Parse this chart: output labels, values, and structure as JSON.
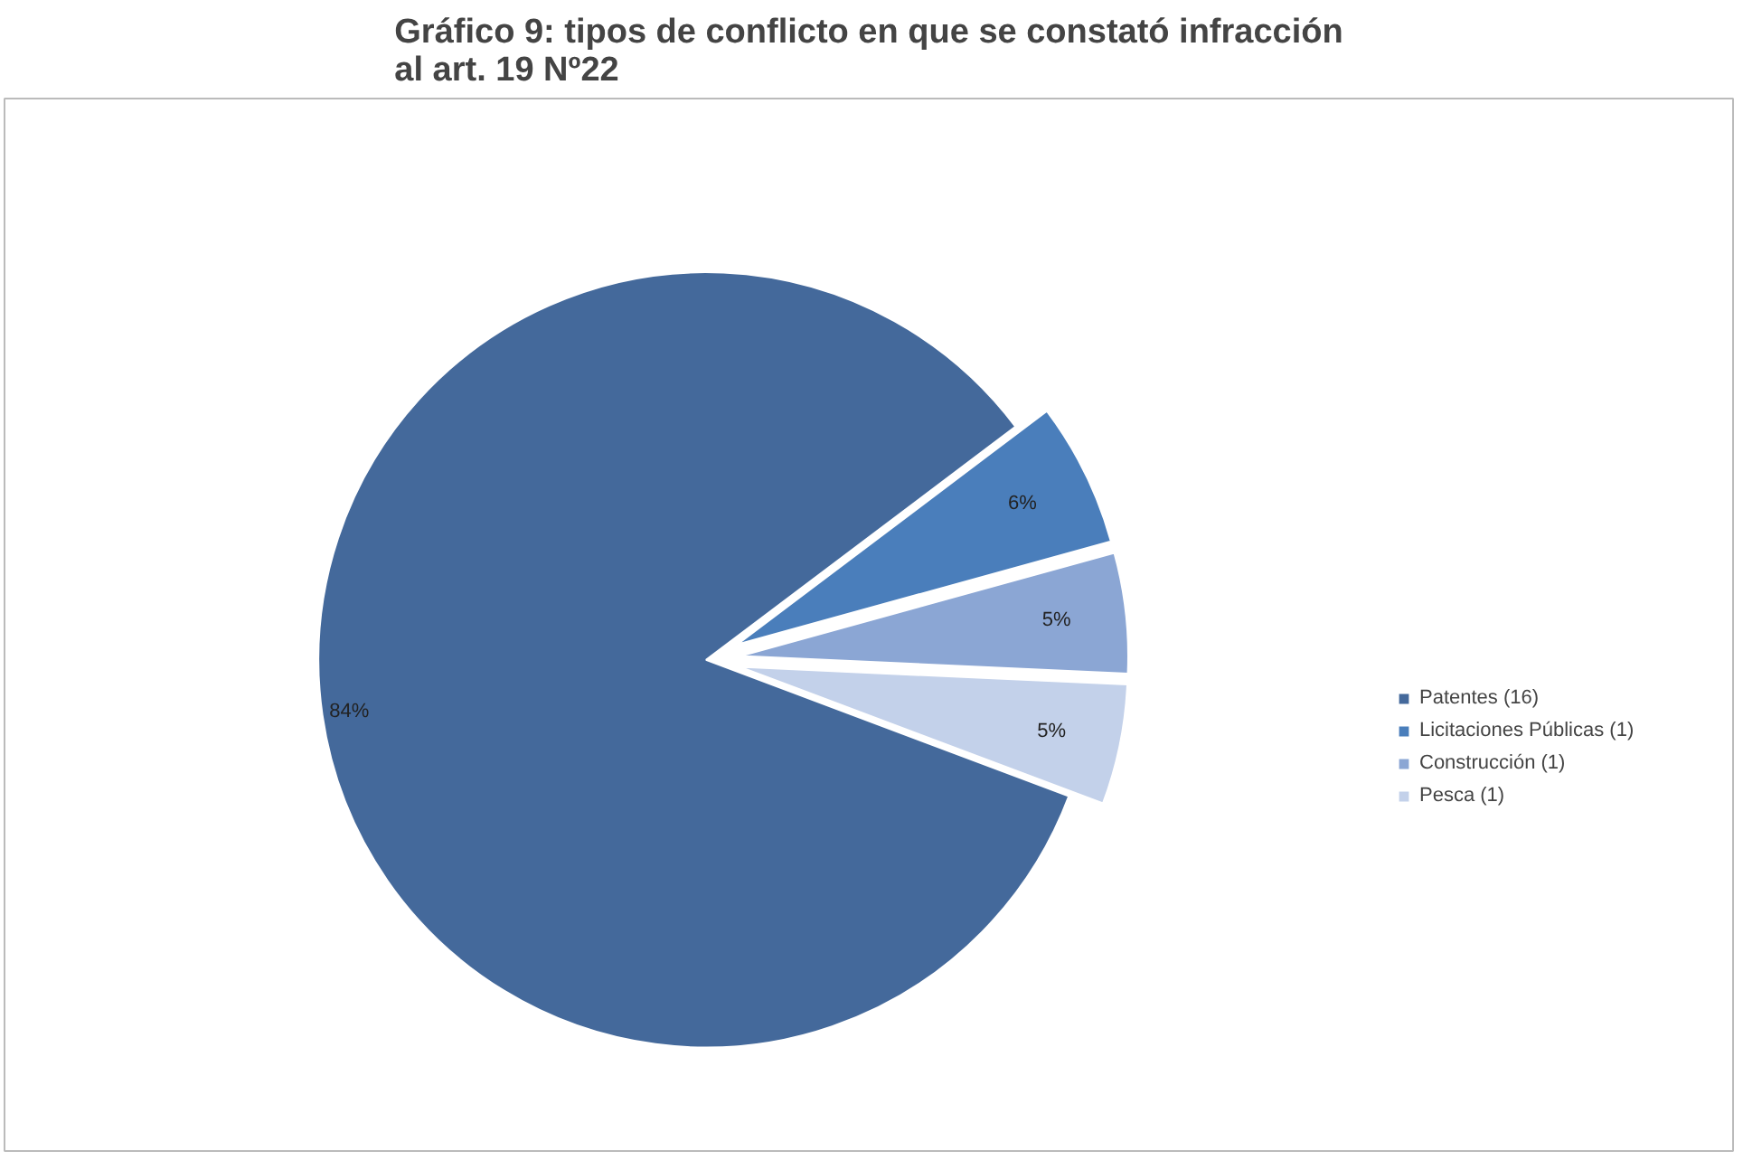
{
  "chart_data": {
    "type": "pie",
    "title": "Gráfico 9: tipos de conflicto en que se constató infracción\nal art. 19 Nº22",
    "categories": [
      "Patentes (16)",
      "Licitaciones Públicas (1)",
      "Construcción (1)",
      "Pesca (1)"
    ],
    "values": [
      84,
      6,
      5,
      5
    ],
    "colors": [
      "#44699b",
      "#4a7ebb",
      "#8ba6d4",
      "#c3d1ea"
    ],
    "value_labels": [
      "84%",
      "6%",
      "5%",
      "5%"
    ],
    "legend": "right"
  }
}
